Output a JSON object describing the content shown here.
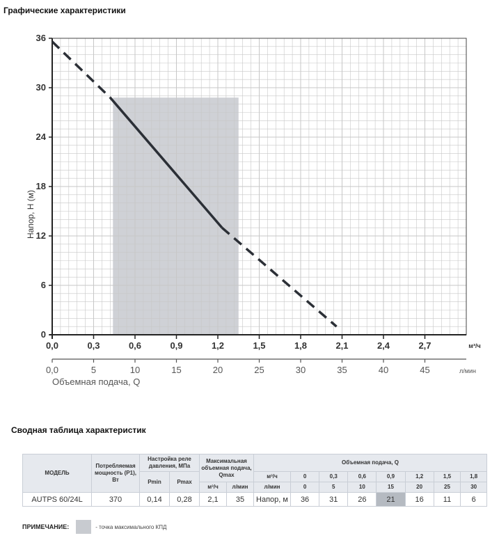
{
  "headings": {
    "chart": "Графические характеристики",
    "table": "Сводная таблица характеристик"
  },
  "chart_data": {
    "type": "line",
    "title": "",
    "ylabel": "Напор, H (м)",
    "xlabel_top_unit": "м³/ч",
    "xlabel_bottom": "Объемная подача, Q",
    "xlabel_bottom_unit": "л/мин",
    "ylim": [
      0,
      36
    ],
    "xlim": [
      0,
      3.0
    ],
    "y_ticks": [
      "0",
      "6",
      "12",
      "18",
      "24",
      "30",
      "36"
    ],
    "x_ticks_m3h": [
      "0,0",
      "0,3",
      "0,6",
      "0,9",
      "1,2",
      "1,5",
      "1,8",
      "2,1",
      "2,4",
      "2,7"
    ],
    "x_ticks_lmin": [
      "0,0",
      "5",
      "10",
      "15",
      "20",
      "25",
      "30",
      "35",
      "40",
      "45"
    ],
    "grid": true,
    "series": [
      {
        "style": "solid",
        "x": [
          0.42,
          1.23
        ],
        "y": [
          28.8,
          13.0
        ]
      },
      {
        "style": "dashed",
        "x": [
          0.0,
          0.42
        ],
        "y": [
          35.6,
          28.8
        ]
      },
      {
        "style": "dashed",
        "x": [
          1.23,
          2.06
        ],
        "y": [
          13.0,
          1.0
        ]
      }
    ],
    "shaded_region": {
      "x": [
        0.44,
        1.35
      ],
      "y_top": 28.8
    },
    "colors": {
      "line": "#2b2f36",
      "shade": "#cfd1d6",
      "grid": "#c7c7c7",
      "axis": "#444444"
    }
  },
  "table": {
    "headers": {
      "model": "МОДЕЛЬ",
      "power": "Потребляемая мощность (P1), Вт",
      "relay": "Настройка реле давления, МПа",
      "pmin": "Pmin",
      "pmax": "Pmax",
      "qmax": "Максимальная объемная подача, Qmax",
      "qmax_m3": "м³/ч",
      "qmax_l": "л/мин",
      "flow": "Объемная подача, Q",
      "flow_m3": "м³/ч",
      "flow_l": "л/мин"
    },
    "flow_m3": [
      "0",
      "0,3",
      "0,6",
      "0,9",
      "1,2",
      "1,5",
      "1,8"
    ],
    "flow_l": [
      "0",
      "5",
      "10",
      "15",
      "20",
      "25",
      "30"
    ],
    "row": {
      "model": "AUTPS 60/24L",
      "power": "370",
      "pmin": "0,14",
      "pmax": "0,28",
      "qmax_m3": "2,1",
      "qmax_l": "35",
      "head_label": "Напор, м",
      "heads": [
        "36",
        "31",
        "26",
        "21",
        "16",
        "11",
        "6"
      ]
    },
    "highlight_index": 3
  },
  "note": {
    "label": "ПРИМЕЧАНИЕ:",
    "text": "- точка максимального КПД"
  }
}
